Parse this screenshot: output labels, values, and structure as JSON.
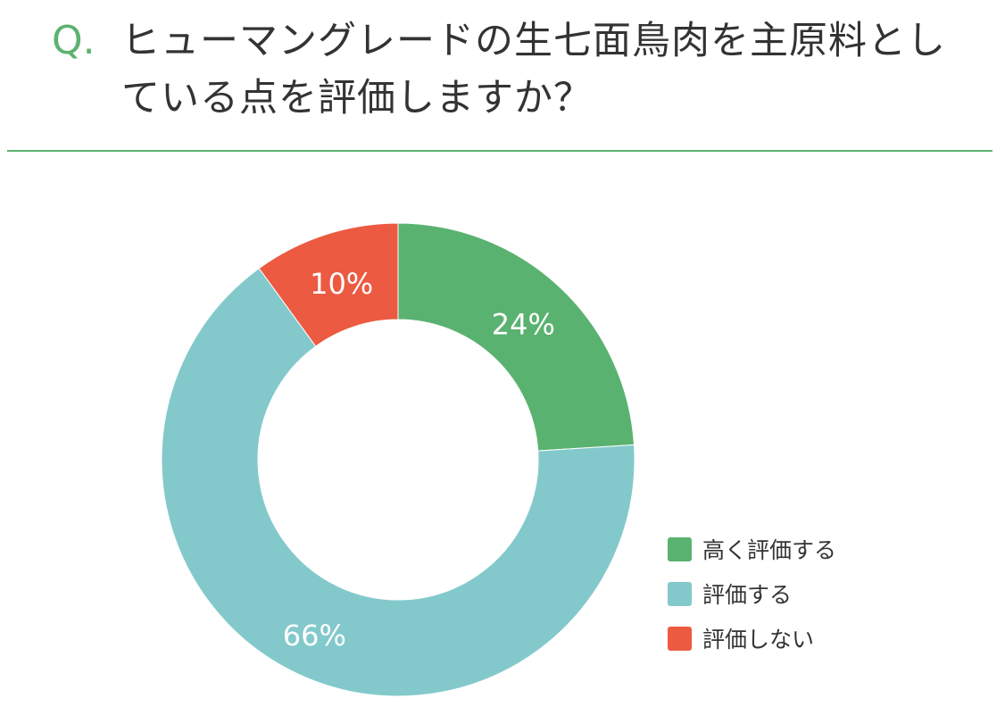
{
  "question": {
    "mark": "Q.",
    "text": "ヒューマングレードの生七面鳥肉を主原料としている点を評価しますか？"
  },
  "colors": {
    "accent": "#5cb270",
    "divider": "#5cb270"
  },
  "chart_data": {
    "type": "pie",
    "style": "donut",
    "title": "",
    "legend_position": "bottom-right",
    "slices": [
      {
        "label": "高く評価する",
        "value": 24,
        "display": "24%",
        "color": "#5ab270"
      },
      {
        "label": "評価する",
        "value": 66,
        "display": "66%",
        "color": "#83c9cb"
      },
      {
        "label": "評価しない",
        "value": 10,
        "display": "10%",
        "color": "#ec5a41"
      }
    ]
  }
}
